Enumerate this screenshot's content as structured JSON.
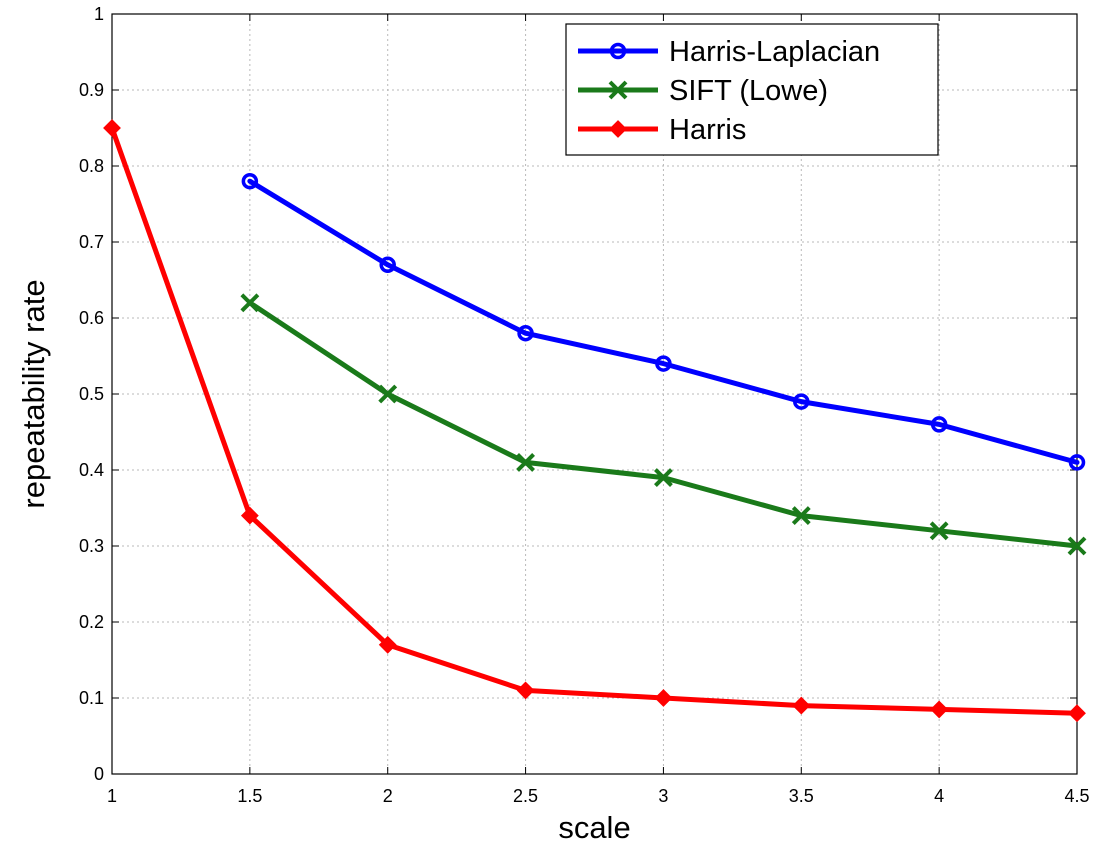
{
  "chart_data": {
    "type": "line",
    "title": "",
    "xlabel": "scale",
    "ylabel": "repeatability rate",
    "xlim": [
      1,
      4.5
    ],
    "ylim": [
      0,
      1
    ],
    "xticks": [
      1,
      1.5,
      2,
      2.5,
      3,
      3.5,
      4,
      4.5
    ],
    "yticks": [
      0,
      0.1,
      0.2,
      0.3,
      0.4,
      0.5,
      0.6,
      0.7,
      0.8,
      0.9,
      1
    ],
    "xtick_labels": [
      "1",
      "1.5",
      "2",
      "2.5",
      "3",
      "3.5",
      "4",
      "4.5"
    ],
    "ytick_labels": [
      "0",
      "0.1",
      "0.2",
      "0.3",
      "0.4",
      "0.5",
      "0.6",
      "0.7",
      "0.8",
      "0.9",
      "1"
    ],
    "grid": true,
    "legend_position": "top-right",
    "series": [
      {
        "name": "Harris-Laplacian",
        "color": "#0000ff",
        "marker": "circle",
        "x": [
          1.5,
          2,
          2.5,
          3,
          3.5,
          4,
          4.5
        ],
        "values": [
          0.78,
          0.67,
          0.58,
          0.54,
          0.49,
          0.46,
          0.41
        ]
      },
      {
        "name": "SIFT (Lowe)",
        "color": "#1a7a1a",
        "marker": "x",
        "x": [
          1.5,
          2,
          2.5,
          3,
          3.5,
          4,
          4.5
        ],
        "values": [
          0.62,
          0.5,
          0.41,
          0.39,
          0.34,
          0.32,
          0.3
        ]
      },
      {
        "name": "Harris",
        "color": "#ff0000",
        "marker": "diamond",
        "x": [
          1,
          1.5,
          2,
          2.5,
          3,
          3.5,
          4,
          4.5
        ],
        "values": [
          0.85,
          0.34,
          0.17,
          0.11,
          0.1,
          0.09,
          0.085,
          0.08
        ]
      }
    ]
  }
}
